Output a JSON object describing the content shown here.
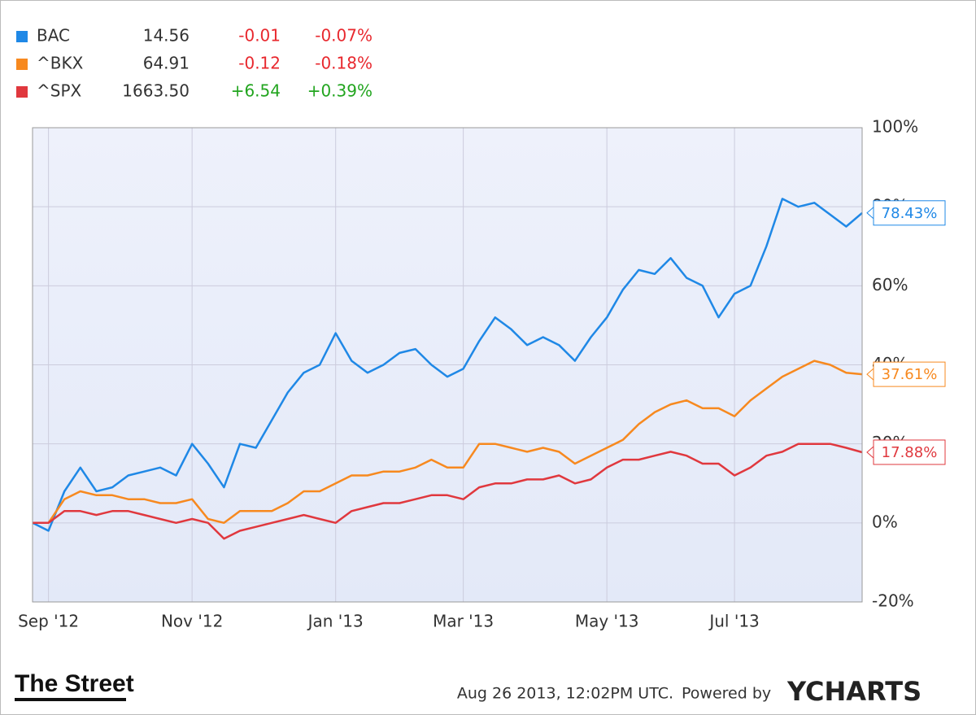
{
  "chart_data": {
    "type": "line",
    "categories": [
      null,
      "Sep '12",
      null,
      null,
      null,
      null,
      null,
      null,
      null,
      null,
      "Nov '12",
      null,
      null,
      null,
      null,
      null,
      null,
      null,
      null,
      "Jan '13",
      null,
      null,
      null,
      null,
      null,
      null,
      null,
      "Mar '13",
      null,
      null,
      null,
      null,
      null,
      null,
      null,
      null,
      "May '13",
      null,
      null,
      null,
      null,
      null,
      null,
      null,
      "Jul '13",
      null,
      null,
      null,
      null,
      null,
      null,
      null,
      null
    ],
    "series": [
      {
        "name": "BAC",
        "color": "#1f88e6",
        "price": "14.56",
        "change": "-0.01",
        "change_pct": "-0.07%",
        "change_color": "#e8282e",
        "values": [
          0,
          -2,
          8,
          14,
          8,
          9,
          12,
          13,
          14,
          12,
          20,
          15,
          9,
          20,
          19,
          26,
          33,
          38,
          40,
          48,
          41,
          38,
          40,
          43,
          44,
          40,
          37,
          39,
          46,
          52,
          49,
          45,
          47,
          45,
          41,
          47,
          52,
          59,
          64,
          63,
          67,
          62,
          60,
          52,
          58,
          60,
          70,
          82,
          80,
          81,
          78,
          75,
          78.43
        ],
        "value_labels": [
          null,
          null,
          null,
          null,
          null,
          null,
          null,
          null,
          null,
          null,
          null,
          null,
          null,
          null,
          null,
          null,
          null,
          null,
          null,
          null,
          null,
          null,
          null,
          null,
          null,
          null,
          null,
          null,
          null,
          null,
          null,
          null,
          null,
          null,
          null,
          null,
          null,
          null,
          null,
          null,
          null,
          null,
          null,
          null,
          null,
          null,
          null,
          null,
          null,
          null,
          null,
          null,
          "78.43%"
        ]
      },
      {
        "name": "^BKX",
        "color": "#f7891f",
        "price": "64.91",
        "change": "-0.12",
        "change_pct": "-0.18%",
        "change_color": "#e8282e",
        "values": [
          0,
          0,
          6,
          8,
          7,
          7,
          6,
          6,
          5,
          5,
          6,
          1,
          0,
          3,
          3,
          3,
          5,
          8,
          8,
          10,
          12,
          12,
          13,
          13,
          14,
          16,
          14,
          14,
          20,
          20,
          19,
          18,
          19,
          18,
          15,
          17,
          19,
          21,
          25,
          28,
          30,
          31,
          29,
          29,
          27,
          31,
          34,
          37,
          39,
          41,
          40,
          38,
          37.61
        ],
        "value_labels": [
          null,
          null,
          null,
          null,
          null,
          null,
          null,
          null,
          null,
          null,
          null,
          null,
          null,
          null,
          null,
          null,
          null,
          null,
          null,
          null,
          null,
          null,
          null,
          null,
          null,
          null,
          null,
          null,
          null,
          null,
          null,
          null,
          null,
          null,
          null,
          null,
          null,
          null,
          null,
          null,
          null,
          null,
          null,
          null,
          null,
          null,
          null,
          null,
          null,
          null,
          null,
          null,
          "37.61%"
        ]
      },
      {
        "name": "^SPX",
        "color": "#e0383e",
        "price": "1663.50",
        "change": "+6.54",
        "change_pct": "+0.39%",
        "change_color": "#22a51f",
        "values": [
          0,
          0,
          3,
          3,
          2,
          3,
          3,
          2,
          1,
          0,
          1,
          0,
          -4,
          -2,
          -1,
          0,
          1,
          2,
          1,
          0,
          3,
          4,
          5,
          5,
          6,
          7,
          7,
          6,
          9,
          10,
          10,
          11,
          11,
          12,
          10,
          11,
          14,
          16,
          16,
          17,
          18,
          17,
          15,
          15,
          12,
          14,
          17,
          18,
          20,
          20,
          20,
          19,
          17.88
        ],
        "value_labels": [
          null,
          null,
          null,
          null,
          null,
          null,
          null,
          null,
          null,
          null,
          null,
          null,
          null,
          null,
          null,
          null,
          null,
          null,
          null,
          null,
          null,
          null,
          null,
          null,
          null,
          null,
          null,
          null,
          null,
          null,
          null,
          null,
          null,
          null,
          null,
          null,
          null,
          null,
          null,
          null,
          null,
          null,
          null,
          null,
          null,
          null,
          null,
          null,
          null,
          null,
          null,
          null,
          "17.88%"
        ]
      }
    ],
    "ylim": [
      -20,
      100
    ],
    "yticks": [
      {
        "value": -20,
        "label": "-20%"
      },
      {
        "value": 0,
        "label": "0%"
      },
      {
        "value": 20,
        "label": "20%"
      },
      {
        "value": 40,
        "label": "40%"
      },
      {
        "value": 60,
        "label": "60%"
      },
      {
        "value": 80,
        "label": "80%"
      },
      {
        "value": 100,
        "label": "100%"
      }
    ],
    "grid": true,
    "footer": {
      "brand": "The Street",
      "timestamp": "Aug 26 2013, 12:02PM UTC.",
      "powered": "Powered by",
      "provider": "YCHARTS"
    }
  }
}
